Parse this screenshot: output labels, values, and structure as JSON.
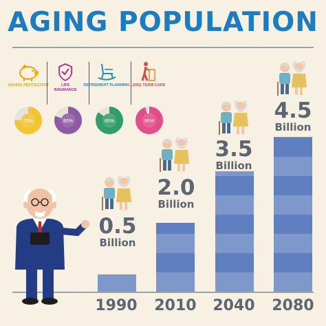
{
  "title": "AGING POPULATION",
  "categories": [
    {
      "label": "SAVING PROTECTION",
      "icon": "piggy-bank-icon",
      "percent": "75%",
      "fraction": 0.75,
      "color": "#f3c431",
      "label_color": "#f0a500"
    },
    {
      "label": "LIFE INSURANCE",
      "icon": "shield-check-icon",
      "percent": "80%",
      "fraction": 0.8,
      "color": "#8d5aa6",
      "label_color": "#b02a8a"
    },
    {
      "label": "RETIREMENT PLANNING",
      "icon": "rocking-chair-icon",
      "percent": "85%",
      "fraction": 0.85,
      "color": "#2f9e6a",
      "label_color": "#1f8bc4"
    },
    {
      "label": "LONG TERM CARE",
      "icon": "walker-person-icon",
      "percent": "95%",
      "fraction": 0.95,
      "color": "#e34e8a",
      "label_color": "#e0483f"
    }
  ],
  "chart_data": {
    "type": "bar",
    "categories": [
      "1990",
      "2010",
      "2040",
      "2080"
    ],
    "values": [
      0.5,
      2.0,
      3.5,
      4.5
    ],
    "value_labels": [
      "0.5",
      "2.0",
      "3.5",
      "4.5"
    ],
    "unit": "Billion",
    "ylim": [
      0,
      4.5
    ],
    "grid": false,
    "bar_colors": [
      "#7f98cc",
      "#5f7fc0"
    ]
  }
}
